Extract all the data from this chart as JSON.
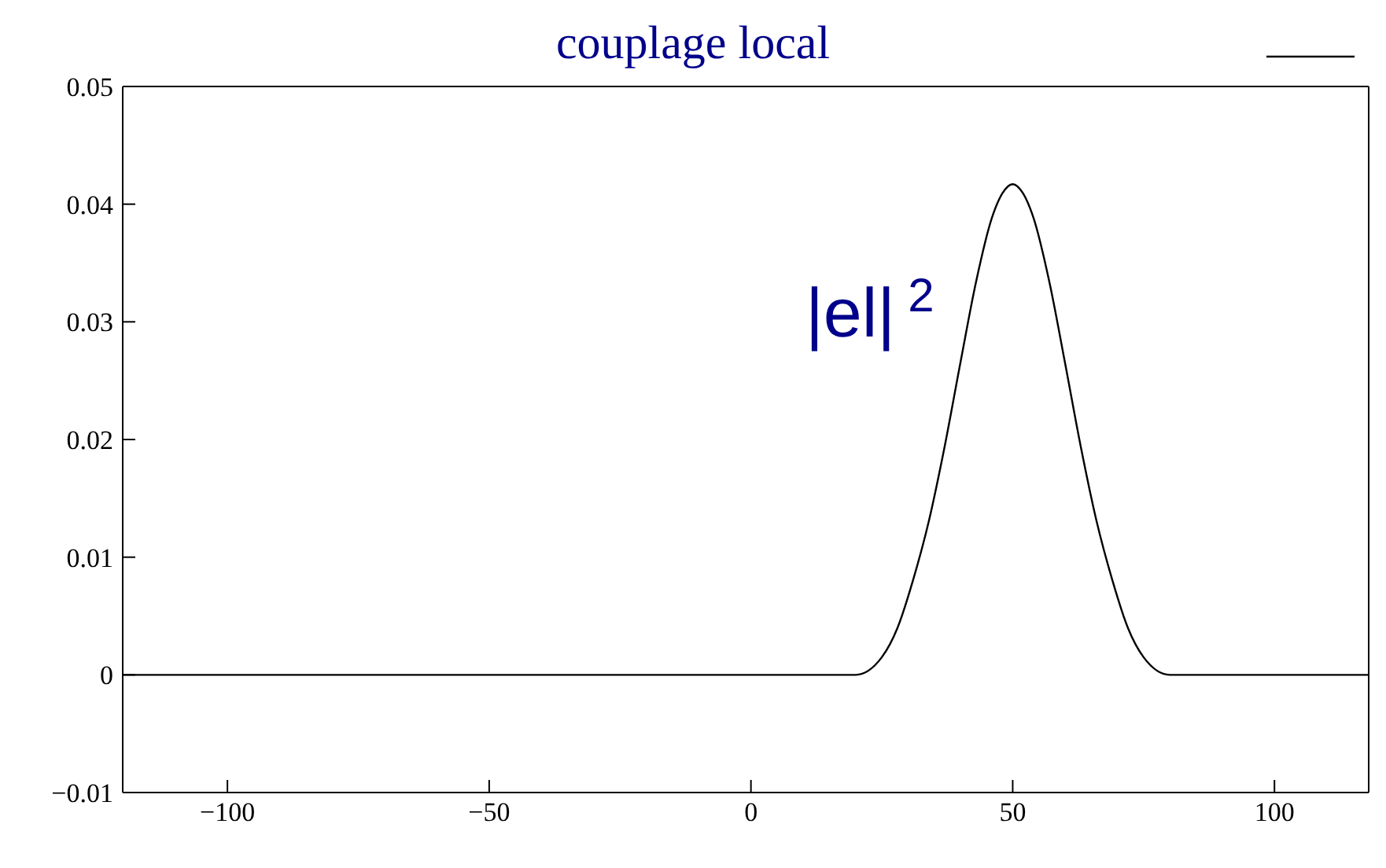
{
  "chart_data": {
    "type": "line",
    "title": "couplage local",
    "annotations": [
      "|el|$^{2}$"
    ],
    "x": [
      -120,
      0,
      20,
      25,
      28,
      31,
      34,
      37,
      40,
      43,
      46,
      48,
      50,
      52,
      54,
      57,
      60,
      63,
      66,
      69,
      72,
      75,
      80,
      118
    ],
    "series": [
      {
        "color": "#000000",
        "values": [
          0,
          0,
          0,
          0.0015,
          0.004,
          0.0081,
          0.0131,
          0.0194,
          0.0265,
          0.0334,
          0.0388,
          0.0409,
          0.0417,
          0.0409,
          0.0388,
          0.0334,
          0.0265,
          0.0194,
          0.0131,
          0.0081,
          0.004,
          0.0015,
          0,
          0
        ]
      }
    ],
    "xlim": [
      -120,
      118
    ],
    "xticks": [
      {
        "value": -100,
        "label": "−100"
      },
      {
        "value": -50,
        "label": "−50"
      },
      0,
      50,
      100
    ],
    "ylim": [
      -0.01,
      0.05
    ],
    "yticks": [
      {
        "value": -0.01,
        "label": "−0.01"
      },
      0,
      0.01,
      0.02,
      0.03,
      0.04,
      0.05
    ],
    "grid": false,
    "marker": "none",
    "line_style": "solid"
  }
}
